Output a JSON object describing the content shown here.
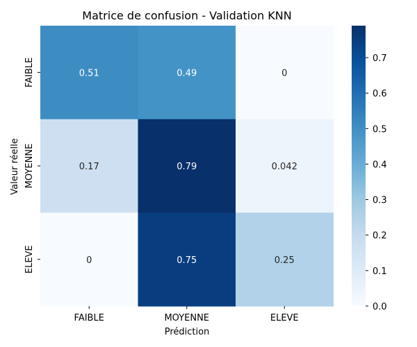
{
  "chart_data": {
    "type": "heatmap",
    "title": "Matrice de confusion - Validation KNN",
    "xlabel": "Prédiction",
    "ylabel": "Valeur réelle",
    "x_categories": [
      "FAIBLE",
      "MOYENNE",
      "ELEVE"
    ],
    "y_categories": [
      "FAIBLE",
      "MOYENNE",
      "ELEVE"
    ],
    "values": [
      [
        0.51,
        0.49,
        0
      ],
      [
        0.17,
        0.79,
        0.042
      ],
      [
        0,
        0.75,
        0.25
      ]
    ],
    "cell_labels": [
      [
        "0.51",
        "0.49",
        "0"
      ],
      [
        "0.17",
        "0.79",
        "0.042"
      ],
      [
        "0",
        "0.75",
        "0.25"
      ]
    ],
    "colorbar": {
      "min": 0,
      "max": 0.79,
      "ticks": [
        0.0,
        0.1,
        0.2,
        0.3,
        0.4,
        0.5,
        0.6,
        0.7
      ],
      "tick_labels": [
        "0.0",
        "0.1",
        "0.2",
        "0.3",
        "0.4",
        "0.5",
        "0.6",
        "0.7"
      ],
      "colormap": "Blues"
    },
    "grid": false
  }
}
